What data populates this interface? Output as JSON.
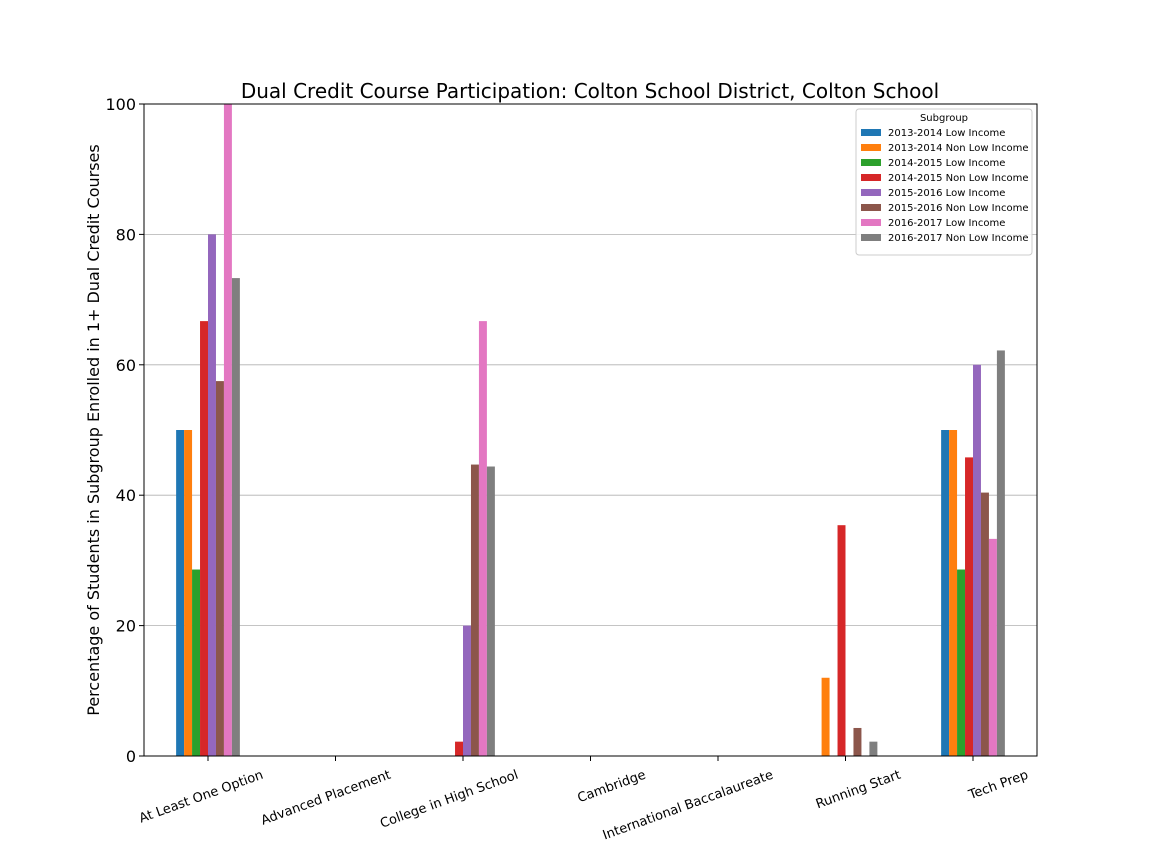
{
  "chart_data": {
    "type": "bar",
    "title": "Dual Credit Course Participation: Colton School District, Colton School",
    "xlabel": "",
    "ylabel": "Percentage of Students in Subgroup Enrolled in 1+ Dual Credit Courses",
    "ylim": [
      0,
      100
    ],
    "yticks": [
      0,
      20,
      40,
      60,
      80,
      100
    ],
    "grid": "horizontal",
    "legend_title": "Subgroup",
    "legend_position": "top-right",
    "categories": [
      "At Least One Option",
      "Advanced Placement",
      "College in High School",
      "Cambridge",
      "International Baccalaureate",
      "Running Start",
      "Tech Prep"
    ],
    "series": [
      {
        "name": "2013-2014 Low Income",
        "color": "#1f77b4",
        "values": [
          50,
          0,
          0,
          0,
          0,
          0,
          50
        ]
      },
      {
        "name": "2013-2014 Non Low Income",
        "color": "#ff7f0e",
        "values": [
          50,
          0,
          0,
          0,
          0,
          12,
          50
        ]
      },
      {
        "name": "2014-2015 Low Income",
        "color": "#2ca02c",
        "values": [
          28.6,
          0,
          0,
          0,
          0,
          0,
          28.6
        ]
      },
      {
        "name": "2014-2015 Non Low Income",
        "color": "#d62728",
        "values": [
          66.7,
          0,
          2.2,
          0,
          0,
          35.4,
          45.8
        ]
      },
      {
        "name": "2015-2016 Low Income",
        "color": "#9467bd",
        "values": [
          80,
          0,
          20,
          0,
          0,
          0,
          60
        ]
      },
      {
        "name": "2015-2016 Non Low Income",
        "color": "#8c564b",
        "values": [
          57.5,
          0,
          44.7,
          0,
          0,
          4.3,
          40.4
        ]
      },
      {
        "name": "2016-2017 Low Income",
        "color": "#e377c2",
        "values": [
          100,
          0,
          66.7,
          0,
          0,
          0,
          33.3
        ]
      },
      {
        "name": "2016-2017 Non Low Income",
        "color": "#7f7f7f",
        "values": [
          73.3,
          0,
          44.4,
          0,
          0,
          2.2,
          62.2
        ]
      }
    ]
  }
}
